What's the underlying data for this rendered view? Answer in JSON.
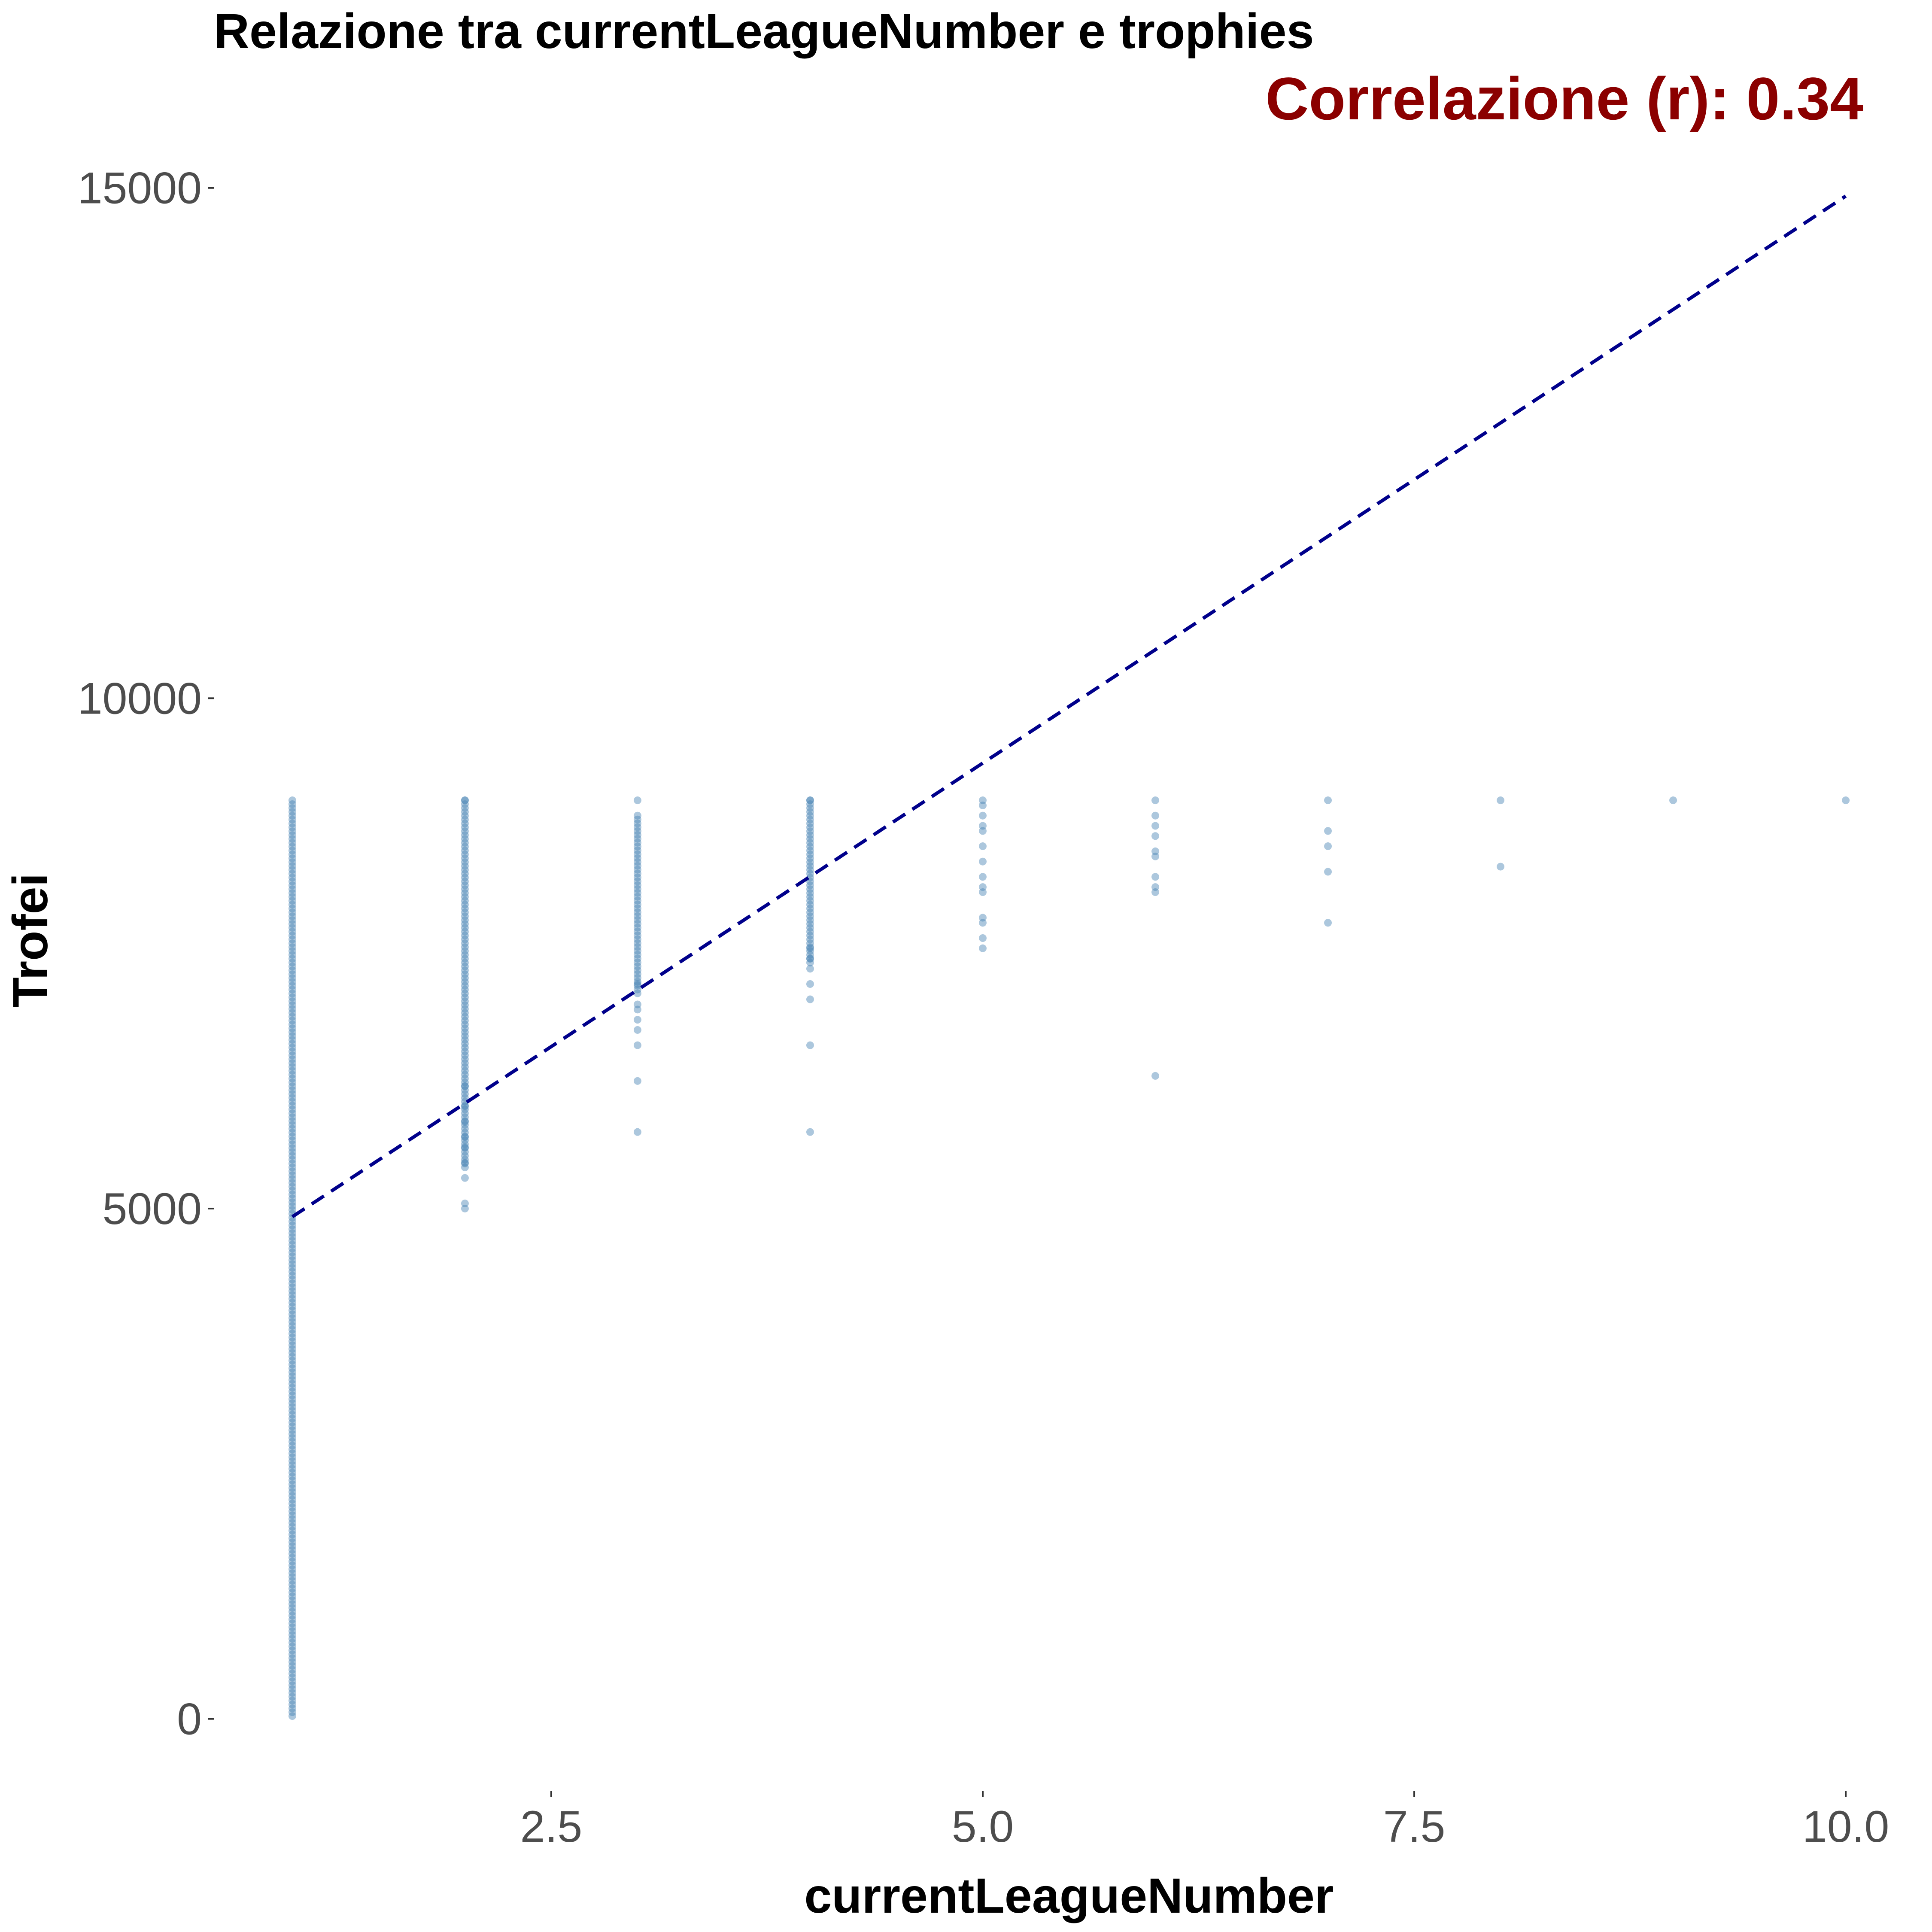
{
  "colors": {
    "points": "#4682b4",
    "trend_line": "#00008b",
    "annotation": "#8b0000"
  },
  "chart_data": {
    "type": "scatter",
    "title": "Relazione tra currentLeagueNumber e trophies",
    "xlabel": "currentLeagueNumber",
    "ylabel": "Trofei",
    "annotation": "Correlazione (r): 0.34",
    "xlim": [
      0.55,
      10.45
    ],
    "ylim": [
      -700,
      16000
    ],
    "x_ticks": [
      2.5,
      5.0,
      7.5,
      10.0
    ],
    "x_tick_labels": [
      "2.5",
      "5.0",
      "7.5",
      "10.0"
    ],
    "y_ticks": [
      0,
      5000,
      10000,
      15000
    ],
    "y_tick_labels": [
      "0",
      "5000",
      "10000",
      "15000"
    ],
    "grid": false,
    "trend_line": {
      "style": "dashed",
      "from": [
        1,
        4920
      ],
      "to": [
        10,
        14920
      ]
    },
    "series": [
      {
        "x_values": [
          1,
          2,
          3,
          4,
          5,
          6,
          7,
          8,
          9,
          10
        ],
        "dense_ranges": [
          {
            "x": 1,
            "from": 0,
            "to": 9000
          },
          {
            "x": 2,
            "from": 5400,
            "to": 9000
          },
          {
            "x": 3,
            "from": 7100,
            "to": 8850
          },
          {
            "x": 4,
            "from": 7400,
            "to": 9000
          }
        ],
        "points": [
          [
            2,
            5000
          ],
          [
            2,
            5050
          ],
          [
            2,
            5300
          ],
          [
            2,
            5450
          ],
          [
            2,
            5600
          ],
          [
            2,
            5700
          ],
          [
            2,
            5850
          ],
          [
            2,
            6000
          ],
          [
            2,
            6200
          ],
          [
            2,
            9000
          ],
          [
            3,
            5750
          ],
          [
            3,
            6250
          ],
          [
            3,
            6600
          ],
          [
            3,
            6750
          ],
          [
            3,
            6850
          ],
          [
            3,
            6950
          ],
          [
            3,
            7000
          ],
          [
            3,
            7200
          ],
          [
            3,
            9000
          ],
          [
            4,
            5750
          ],
          [
            4,
            6600
          ],
          [
            4,
            7050
          ],
          [
            4,
            7200
          ],
          [
            4,
            7350
          ],
          [
            4,
            7450
          ],
          [
            4,
            7550
          ],
          [
            4,
            9000
          ],
          [
            5,
            7550
          ],
          [
            5,
            7650
          ],
          [
            5,
            7800
          ],
          [
            5,
            7850
          ],
          [
            5,
            8100
          ],
          [
            5,
            8150
          ],
          [
            5,
            8250
          ],
          [
            5,
            8400
          ],
          [
            5,
            8550
          ],
          [
            5,
            8700
          ],
          [
            5,
            8750
          ],
          [
            5,
            8850
          ],
          [
            5,
            8950
          ],
          [
            5,
            9000
          ],
          [
            6,
            6300
          ],
          [
            6,
            8100
          ],
          [
            6,
            8150
          ],
          [
            6,
            8250
          ],
          [
            6,
            8450
          ],
          [
            6,
            8500
          ],
          [
            6,
            8650
          ],
          [
            6,
            8750
          ],
          [
            6,
            8850
          ],
          [
            6,
            9000
          ],
          [
            7,
            7800
          ],
          [
            7,
            8300
          ],
          [
            7,
            8550
          ],
          [
            7,
            8700
          ],
          [
            7,
            9000
          ],
          [
            8,
            8350
          ],
          [
            8,
            9000
          ],
          [
            9,
            9000
          ],
          [
            10,
            9000
          ]
        ]
      }
    ]
  }
}
